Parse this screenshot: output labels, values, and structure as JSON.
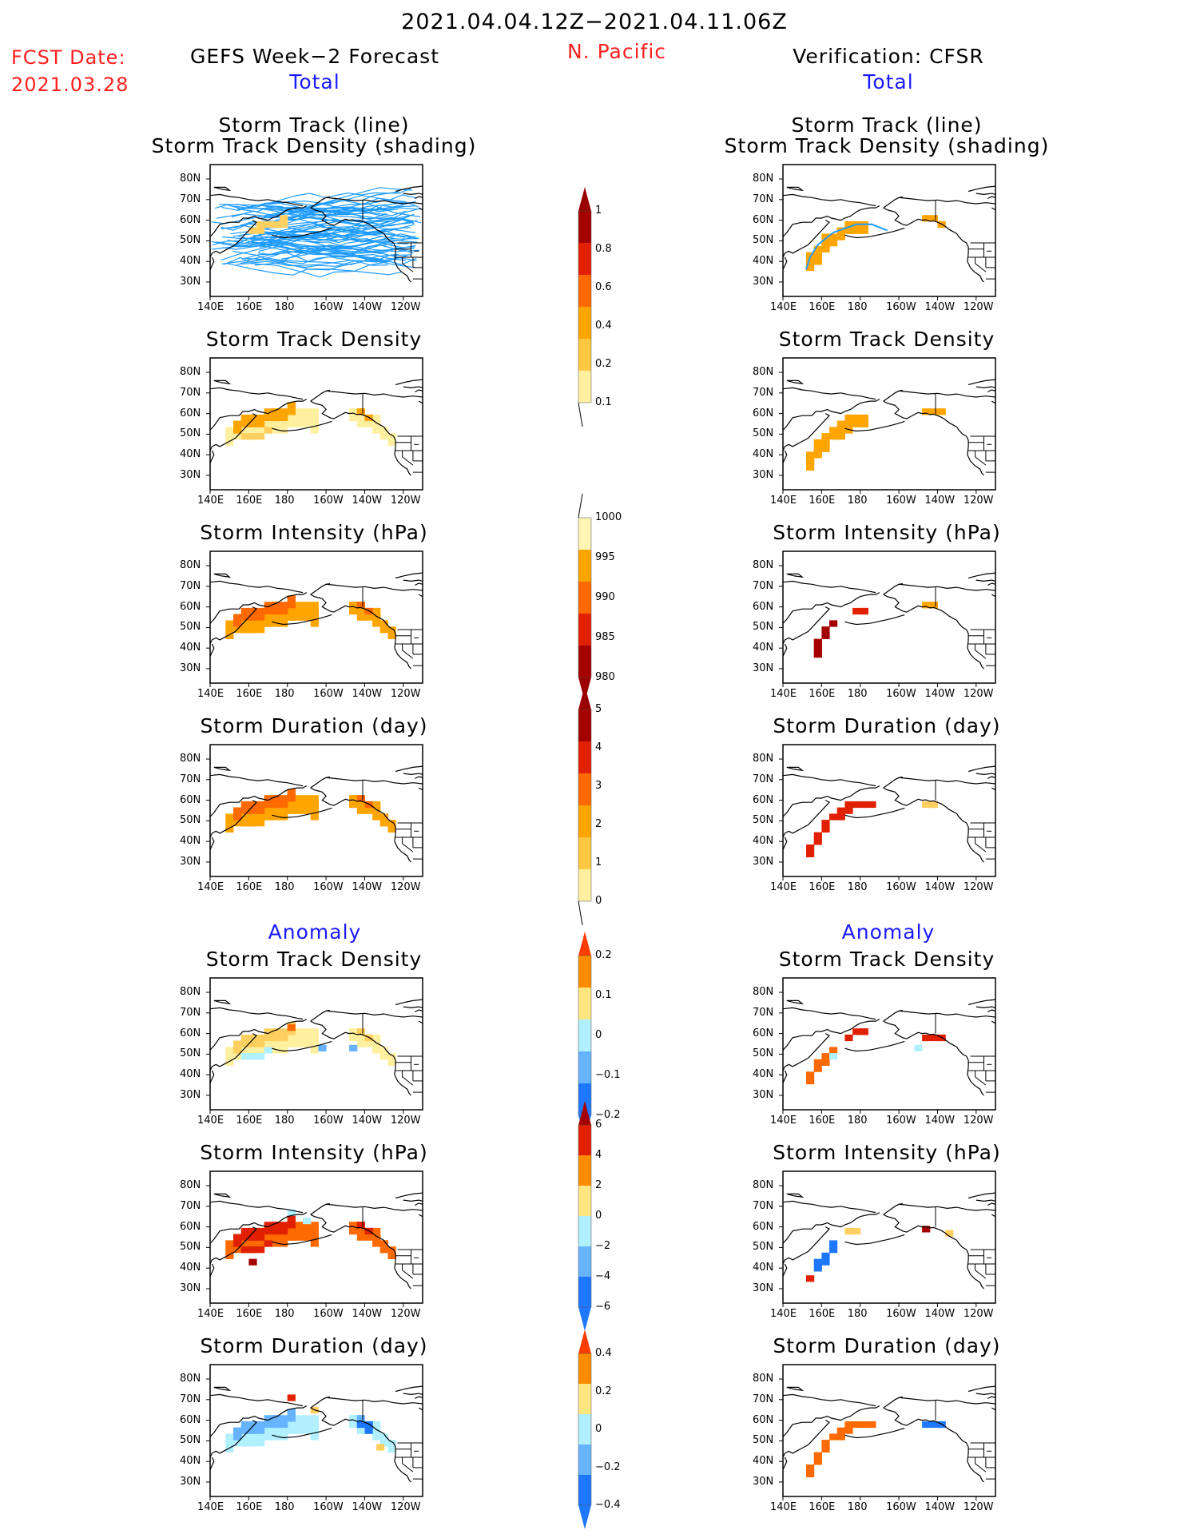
{
  "header": {
    "date_range": "2021.04.04.12Z−2021.04.11.06Z",
    "region": "N. Pacific",
    "fcst_label": "FCST Date:",
    "fcst_date": "2021.03.28",
    "left_title": "GEFS Week−2 Forecast",
    "right_title": "Verification: CFSR",
    "total_label": "Total",
    "anomaly_label": "Anomaly"
  },
  "axes": {
    "lat_labels": [
      "80N",
      "70N",
      "60N",
      "50N",
      "40N",
      "30N"
    ],
    "lon_labels": [
      "140E",
      "160E",
      "180",
      "160W",
      "140W",
      "120W"
    ]
  },
  "panels": {
    "left": [
      {
        "title1": "Storm Track (line)",
        "title2": "Storm Track Density (shading)",
        "kind": "tracks"
      },
      {
        "title1": "Storm Track Density",
        "title2": "",
        "kind": "density_fcst"
      },
      {
        "title1": "Storm Intensity (hPa)",
        "title2": "",
        "kind": "intensity_fcst"
      },
      {
        "title1": "Storm Duration (day)",
        "title2": "",
        "kind": "duration_fcst"
      },
      {
        "title1": "Storm Track Density",
        "title2": "",
        "kind": "density_anom_fcst"
      },
      {
        "title1": "Storm Intensity (hPa)",
        "title2": "",
        "kind": "intensity_anom_fcst"
      },
      {
        "title1": "Storm Duration (day)",
        "title2": "",
        "kind": "duration_anom_fcst"
      }
    ],
    "right": [
      {
        "title1": "Storm Track (line)",
        "title2": "Storm Track Density (shading)",
        "kind": "tracks_obs"
      },
      {
        "title1": "Storm Track Density",
        "title2": "",
        "kind": "density_obs"
      },
      {
        "title1": "Storm Intensity (hPa)",
        "title2": "",
        "kind": "intensity_obs"
      },
      {
        "title1": "Storm Duration (day)",
        "title2": "",
        "kind": "duration_obs"
      },
      {
        "title1": "Storm Track Density",
        "title2": "",
        "kind": "density_anom_obs"
      },
      {
        "title1": "Storm Intensity (hPa)",
        "title2": "",
        "kind": "intensity_anom_obs"
      },
      {
        "title1": "Storm Duration (day)",
        "title2": "",
        "kind": "duration_anom_obs"
      }
    ]
  },
  "colorbars": [
    {
      "name": "density",
      "labels": [
        "1",
        "0.8",
        "0.6",
        "0.4",
        "0.2",
        "0.1"
      ],
      "colors": [
        "#a50000",
        "#e12000",
        "#ff6a00",
        "#ffa500",
        "#ffc840",
        "#fff0a0"
      ],
      "arrow_top": "#9a0000",
      "arrow_bottom": "none"
    },
    {
      "name": "intensity",
      "labels": [
        "1000",
        "995",
        "990",
        "985",
        "980"
      ],
      "colors": [
        "#fff5b5",
        "#ffa500",
        "#ff6a00",
        "#e12000",
        "#a50000"
      ],
      "arrow_top": "none",
      "arrow_bottom": "#9a0000"
    },
    {
      "name": "duration",
      "labels": [
        "5",
        "4",
        "3",
        "2",
        "1",
        "0"
      ],
      "colors": [
        "#a50000",
        "#e12000",
        "#ff6a00",
        "#ffa500",
        "#ffc840",
        "#fff0a0"
      ],
      "arrow_top": "#9a0000",
      "arrow_bottom": "none"
    },
    {
      "name": "density_anom",
      "labels": [
        "0.2",
        "0.1",
        "0",
        "−0.1",
        "−0.2"
      ],
      "colors": [
        "#ff8c00",
        "#ffe680",
        "#b0f0ff",
        "#66b4ff",
        "#1e78ff"
      ],
      "arrow_top": "#ff3b00",
      "arrow_bottom": "#1e78ff"
    },
    {
      "name": "intensity_anom",
      "labels": [
        "6",
        "4",
        "2",
        "0",
        "−2",
        "−4",
        "−6"
      ],
      "colors": [
        "#e12000",
        "#ff8c00",
        "#ffe680",
        "#b0f0ff",
        "#66b4ff",
        "#1e78ff"
      ],
      "arrow_top": "#a50000",
      "arrow_bottom": "#1e78ff"
    },
    {
      "name": "duration_anom",
      "labels": [
        "0.4",
        "0.2",
        "0",
        "−0.2",
        "−0.4"
      ],
      "colors": [
        "#ff8c00",
        "#ffe680",
        "#b0f0ff",
        "#66b4ff",
        "#1e78ff"
      ],
      "arrow_top": "#ff3b00",
      "arrow_bottom": "#1e78ff"
    }
  ],
  "palette": {
    "track_line": "#1e9bff",
    "coast": "#000000",
    "light_yellow": "#fff0a0",
    "yellow": "#ffd060",
    "orange": "#ffa500",
    "dark_orange": "#ff6a00",
    "red": "#e12000",
    "dark_red": "#a50000",
    "light_blue": "#b0f0ff",
    "mid_blue": "#66b4ff",
    "blue": "#1e78ff"
  }
}
